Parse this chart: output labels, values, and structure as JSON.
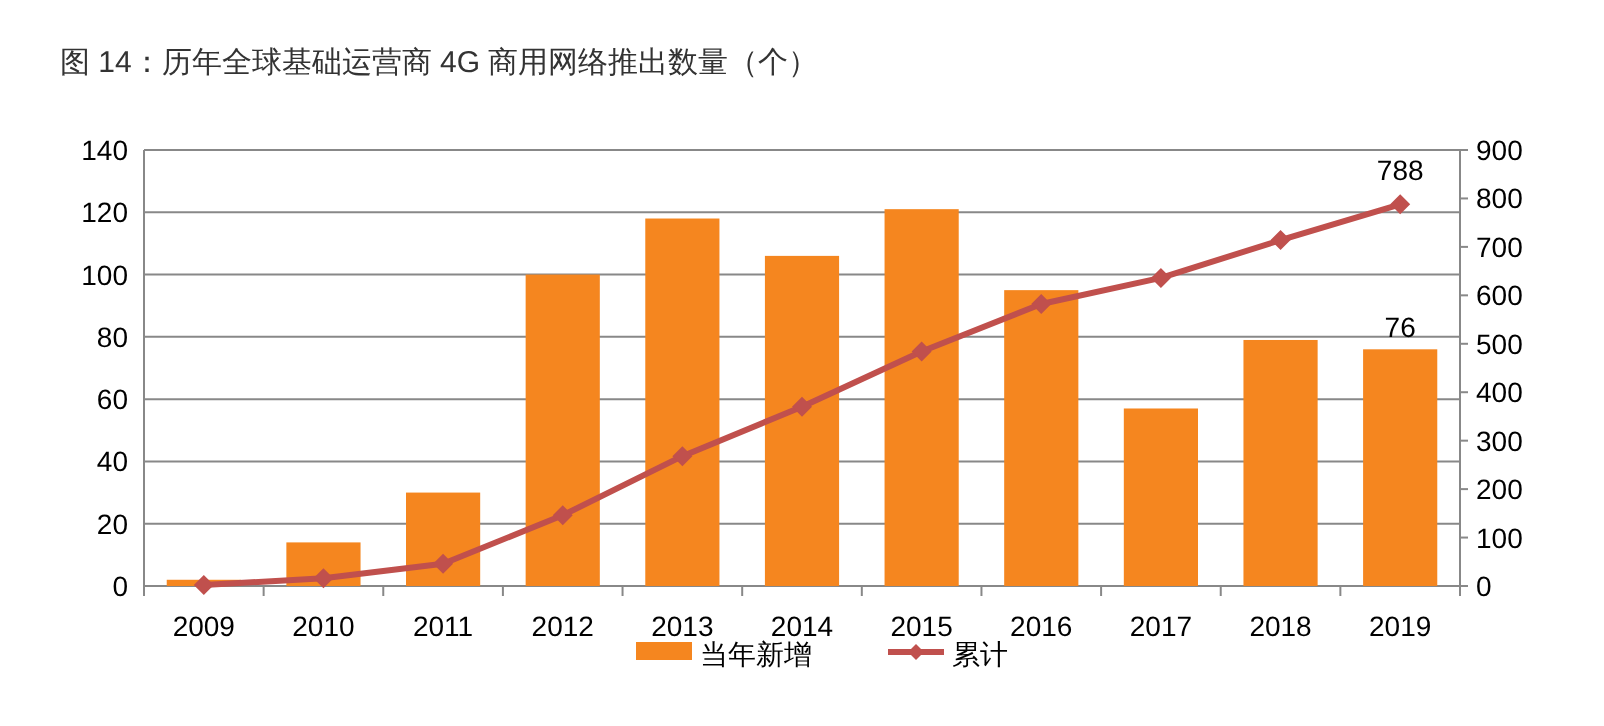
{
  "chart_data": {
    "type": "bar",
    "title": "图 14：历年全球基础运营商 4G 商用网络推出数量（个）",
    "categories": [
      "2009",
      "2010",
      "2011",
      "2012",
      "2013",
      "2014",
      "2015",
      "2016",
      "2017",
      "2018",
      "2019"
    ],
    "series": [
      {
        "name": "当年新增",
        "color": "#f5861f",
        "values": [
          2,
          14,
          30,
          100,
          118,
          106,
          121,
          95,
          57,
          79,
          76
        ],
        "value_labels": [
          null,
          null,
          null,
          null,
          null,
          null,
          null,
          null,
          null,
          null,
          "76"
        ]
      },
      {
        "name": "累计",
        "type": "line",
        "axis": "y2",
        "color": "#c0504d",
        "marker": "diamond",
        "values": [
          2,
          16,
          46,
          146,
          268,
          370,
          484,
          582,
          636,
          714,
          788
        ],
        "value_labels": [
          null,
          null,
          null,
          null,
          null,
          null,
          null,
          null,
          null,
          null,
          "788"
        ]
      }
    ],
    "ylim": [
      0,
      140
    ],
    "yticks": [
      0,
      20,
      40,
      60,
      80,
      100,
      120,
      140
    ],
    "y2lim": [
      0,
      900
    ],
    "y2ticks": [
      0,
      100,
      200,
      300,
      400,
      500,
      600,
      700,
      800,
      900
    ],
    "grid": "y",
    "legend": "bottom"
  }
}
